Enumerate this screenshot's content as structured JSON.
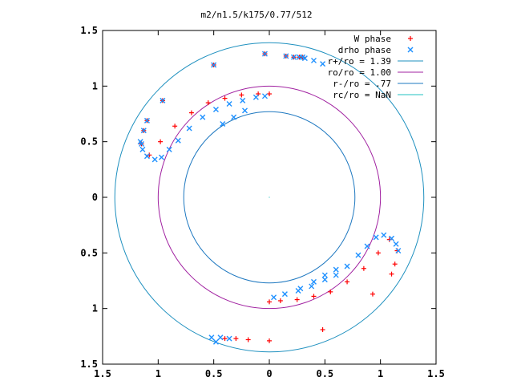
{
  "chart_data": {
    "type": "scatter",
    "title": "m2/n1.5/k175/0.77/512",
    "xlim": [
      -1.5,
      1.5
    ],
    "ylim": [
      -1.5,
      1.5
    ],
    "x_ticks": [
      -1.5,
      -1,
      -0.5,
      0,
      0.5,
      1,
      1.5
    ],
    "y_ticks": [
      -1.5,
      -1,
      -0.5,
      0,
      0.5,
      1,
      1.5
    ],
    "x_tick_labels": [
      "1.5",
      "1",
      "0.5",
      "0",
      "0.5",
      "1",
      "1.5"
    ],
    "y_tick_labels": [
      "1.5",
      "1",
      "0.5",
      "0",
      "0.5",
      "1",
      "1.5"
    ],
    "grid": false,
    "legend_position": "top-right",
    "colors": {
      "w_phase": "#ff0000",
      "drho_phase": "#1e90ff",
      "r_plus": "#1e90bf",
      "r_o": "#a020a0",
      "r_minus": "#1e78c0",
      "r_c": "#20c0c0"
    },
    "circles": [
      {
        "name": "r+/ro = 1.39",
        "radius": 1.39
      },
      {
        "name": "ro/ro = 1.00",
        "radius": 1.0
      },
      {
        "name": "r-/ro = .77",
        "radius": 0.77
      },
      {
        "name": "rc/ro = NaN",
        "radius": null
      }
    ],
    "series": [
      {
        "name": "W phase",
        "marker": "plus",
        "points": [
          [
            -1.15,
            0.48
          ],
          [
            -1.13,
            0.6
          ],
          [
            -1.1,
            0.69
          ],
          [
            -0.96,
            0.87
          ],
          [
            -0.5,
            1.19
          ],
          [
            -0.04,
            1.29
          ],
          [
            0.15,
            1.27
          ],
          [
            0.22,
            1.26
          ],
          [
            0.27,
            1.26
          ],
          [
            0.3,
            1.26
          ],
          [
            -1.08,
            0.38
          ],
          [
            -0.98,
            0.5
          ],
          [
            -0.85,
            0.64
          ],
          [
            -0.7,
            0.76
          ],
          [
            -0.55,
            0.85
          ],
          [
            -0.4,
            0.89
          ],
          [
            -0.25,
            0.92
          ],
          [
            -0.1,
            0.93
          ],
          [
            0.0,
            0.93
          ],
          [
            1.15,
            -0.48
          ],
          [
            1.13,
            -0.6
          ],
          [
            1.1,
            -0.69
          ],
          [
            0.93,
            -0.87
          ],
          [
            0.48,
            -1.19
          ],
          [
            0.0,
            -1.29
          ],
          [
            -0.19,
            -1.28
          ],
          [
            -0.3,
            -1.27
          ],
          [
            -0.4,
            -1.27
          ],
          [
            1.08,
            -0.38
          ],
          [
            0.98,
            -0.5
          ],
          [
            0.85,
            -0.64
          ],
          [
            0.7,
            -0.76
          ],
          [
            0.55,
            -0.85
          ],
          [
            0.4,
            -0.89
          ],
          [
            0.25,
            -0.92
          ],
          [
            0.1,
            -0.93
          ],
          [
            0.0,
            -0.94
          ]
        ]
      },
      {
        "name": "drho phase",
        "marker": "cross",
        "points": [
          [
            -1.15,
            0.48
          ],
          [
            -1.13,
            0.6
          ],
          [
            -1.1,
            0.69
          ],
          [
            -0.96,
            0.87
          ],
          [
            -0.5,
            1.19
          ],
          [
            -0.04,
            1.29
          ],
          [
            0.15,
            1.27
          ],
          [
            0.22,
            1.26
          ],
          [
            0.27,
            1.26
          ],
          [
            0.3,
            1.26
          ],
          [
            -1.16,
            0.5
          ],
          [
            -1.14,
            0.43
          ],
          [
            -1.1,
            0.37
          ],
          [
            -1.03,
            0.34
          ],
          [
            -0.97,
            0.36
          ],
          [
            -0.9,
            0.43
          ],
          [
            -0.82,
            0.51
          ],
          [
            -0.72,
            0.62
          ],
          [
            -0.6,
            0.72
          ],
          [
            -0.48,
            0.79
          ],
          [
            -0.36,
            0.84
          ],
          [
            -0.24,
            0.87
          ],
          [
            -0.12,
            0.9
          ],
          [
            -0.04,
            0.91
          ],
          [
            -0.22,
            0.78
          ],
          [
            -0.32,
            0.72
          ],
          [
            -0.42,
            0.66
          ],
          [
            0.32,
            1.25
          ],
          [
            0.4,
            1.23
          ],
          [
            0.48,
            1.2
          ],
          [
            1.16,
            -0.48
          ],
          [
            1.14,
            -0.42
          ],
          [
            1.1,
            -0.37
          ],
          [
            1.03,
            -0.34
          ],
          [
            0.96,
            -0.36
          ],
          [
            0.88,
            -0.44
          ],
          [
            0.8,
            -0.52
          ],
          [
            0.7,
            -0.62
          ],
          [
            0.6,
            -0.7
          ],
          [
            0.5,
            -0.74
          ],
          [
            0.38,
            -0.8
          ],
          [
            0.26,
            -0.84
          ],
          [
            0.14,
            -0.87
          ],
          [
            0.04,
            -0.9
          ],
          [
            0.6,
            -0.65
          ],
          [
            0.5,
            -0.7
          ],
          [
            0.4,
            -0.76
          ],
          [
            0.28,
            -0.82
          ],
          [
            -0.52,
            -1.26
          ],
          [
            -0.44,
            -1.26
          ],
          [
            -0.36,
            -1.27
          ],
          [
            -0.48,
            -1.3
          ]
        ]
      }
    ]
  }
}
